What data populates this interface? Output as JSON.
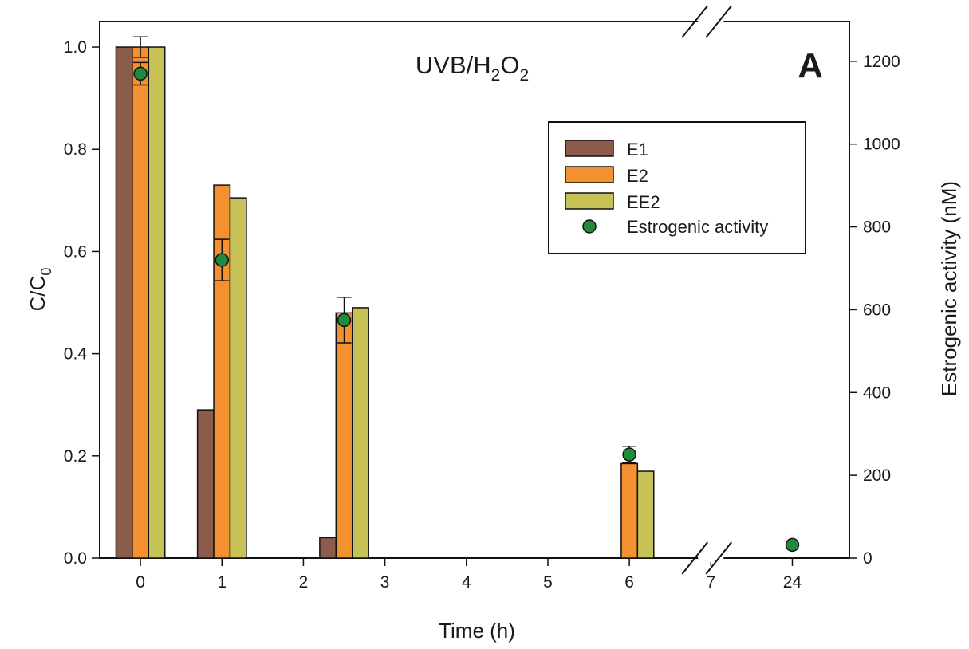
{
  "chart_data": {
    "type": "bar",
    "title": "",
    "panel_label": "A",
    "annotation": {
      "base": "UVB/H",
      "sub1": "2",
      "mid": "O",
      "sub2": "2"
    },
    "xlabel": "Time (h)",
    "ylabel_left": {
      "base": "C/C",
      "sub": "0"
    },
    "ylabel_right": "Estrogenic activity (nM)",
    "x_ticks": [
      {
        "label": "0",
        "value": 0
      },
      {
        "label": "1",
        "value": 1
      },
      {
        "label": "2",
        "value": 2
      },
      {
        "label": "3",
        "value": 3
      },
      {
        "label": "4",
        "value": 4
      },
      {
        "label": "5",
        "value": 5
      },
      {
        "label": "6",
        "value": 6
      },
      {
        "label": "7",
        "value": 7
      },
      {
        "label": "24",
        "value": 8
      }
    ],
    "xlim": [
      -0.5,
      8.7
    ],
    "ylim_left": [
      0,
      1.05
    ],
    "ylim_right": [
      0,
      1296
    ],
    "yticks_left": [
      {
        "label": "0.0",
        "value": 0
      },
      {
        "label": "0.2",
        "value": 0.2
      },
      {
        "label": "0.4",
        "value": 0.4
      },
      {
        "label": "0.6",
        "value": 0.6
      },
      {
        "label": "0.8",
        "value": 0.8
      },
      {
        "label": "1.0",
        "value": 1.0
      }
    ],
    "yticks_right": [
      {
        "label": "0",
        "value": 0
      },
      {
        "label": "200",
        "value": 200
      },
      {
        "label": "400",
        "value": 400
      },
      {
        "label": "600",
        "value": 600
      },
      {
        "label": "800",
        "value": 800
      },
      {
        "label": "1000",
        "value": 1000
      },
      {
        "label": "1200",
        "value": 1200
      }
    ],
    "axis_break_at": 7,
    "legend_position": "top-right",
    "series": [
      {
        "name": "E1",
        "color": "#8B5B4C",
        "points": [
          {
            "x": 0,
            "y": 1.0
          },
          {
            "x": 1,
            "y": 0.29
          },
          {
            "x": 2.5,
            "y": 0.04
          }
        ]
      },
      {
        "name": "E2",
        "color": "#F39130",
        "points": [
          {
            "x": 0,
            "y": 1.0,
            "err": 0.02
          },
          {
            "x": 1,
            "y": 0.73
          },
          {
            "x": 2.5,
            "y": 0.48,
            "err": 0.0
          },
          {
            "x": 6,
            "y": 0.185
          }
        ]
      },
      {
        "name": "EE2",
        "color": "#C7C257",
        "points": [
          {
            "x": 0,
            "y": 1.0
          },
          {
            "x": 1,
            "y": 0.705
          },
          {
            "x": 2.5,
            "y": 0.49
          },
          {
            "x": 6,
            "y": 0.17
          }
        ]
      }
    ],
    "activity": {
      "name": "Estrogenic activity",
      "color": "#1E8C3C",
      "axis": "right",
      "points": [
        {
          "x": 0,
          "y": 1170,
          "err": 27
        },
        {
          "x": 1,
          "y": 720,
          "err": 50
        },
        {
          "x": 2.5,
          "y": 575,
          "err": 55
        },
        {
          "x": 6,
          "y": 250,
          "err": 20
        },
        {
          "x": 8,
          "y": 32,
          "err": 0
        }
      ]
    }
  }
}
